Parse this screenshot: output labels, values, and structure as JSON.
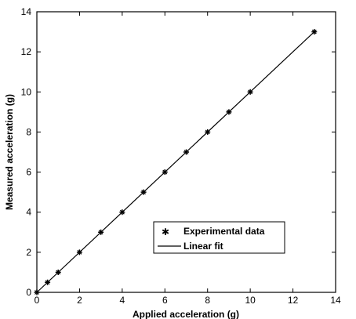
{
  "chart_data": {
    "type": "scatter",
    "xlabel": "Applied acceleration (g)",
    "ylabel": "Measured acceleration (g)",
    "xlim": [
      0,
      14
    ],
    "ylim": [
      0,
      14
    ],
    "xticks": [
      "0",
      "2",
      "4",
      "6",
      "8",
      "10",
      "12",
      "14"
    ],
    "yticks": [
      "0",
      "2",
      "4",
      "6",
      "8",
      "10",
      "12",
      "14"
    ],
    "grid": false,
    "legend_position": "lower-right",
    "series": [
      {
        "name": "Experimental data",
        "kind": "scatter",
        "marker": "star",
        "x": [
          0,
          0.5,
          1,
          2,
          3,
          4,
          5,
          6,
          7,
          8,
          9,
          10,
          13
        ],
        "y": [
          0,
          0.5,
          1,
          2,
          3,
          4,
          5,
          6,
          7,
          8,
          9,
          10,
          13
        ]
      },
      {
        "name": "Linear fit",
        "kind": "line",
        "x": [
          0,
          13
        ],
        "y": [
          0,
          13
        ]
      }
    ]
  }
}
